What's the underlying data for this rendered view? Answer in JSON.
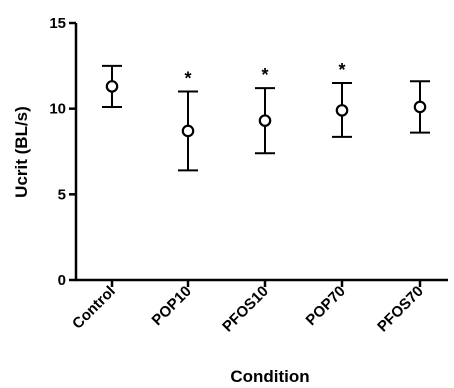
{
  "chart_data": {
    "type": "scatter",
    "xlabel": "Condition",
    "ylabel": "Ucrit (BL/s)",
    "ylim": [
      0,
      15
    ],
    "yticks": [
      0,
      5,
      10,
      15
    ],
    "grid": false,
    "categories": [
      "Control",
      "POP10",
      "PFOS10",
      "POP70",
      "PFOS70"
    ],
    "series": [
      {
        "values": [
          11.3,
          8.7,
          9.3,
          9.9,
          10.1
        ],
        "error_low": [
          10.1,
          6.4,
          7.4,
          8.35,
          8.6
        ],
        "error_high": [
          12.5,
          11.0,
          11.2,
          11.5,
          11.6
        ]
      }
    ],
    "annotations": [
      "",
      "*",
      "*",
      "*",
      ""
    ]
  }
}
